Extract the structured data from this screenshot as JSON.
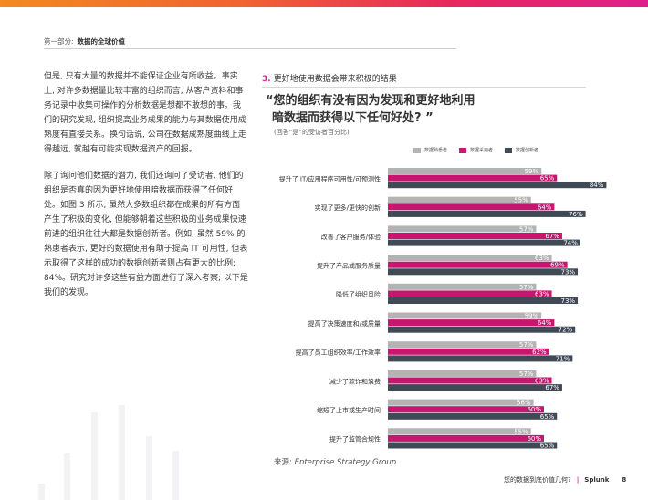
{
  "header": {
    "section_prefix": "第一部分:",
    "section_title": "数据的全球价值"
  },
  "body": {
    "para1": "但是, 只有大量的数据并不能保证企业有所收益。事实上, 对许多数据量比较丰富的组织而言, 从客户资料和事务记录中收集可操作的分析数据是想都不敢想的事。我们的研究发现, 组织提高业务成果的能力与其数据使用成熟度有直接关系。换句话说, 公司在数据成熟度曲线上走得越远, 就越有可能实现数据资产的回报。",
    "para2": "除了询问他们数据的潜力, 我们还询问了受访者, 他们的组织是否真的因为更好地使用暗数据而获得了任何好处。如图 3 所示, 虽然大多数组织都在成果的所有方面产生了积极的变化, 但能够朝着这些积极的业务成果快速前进的组织往往大都是数据创新者。例如, 虽然 59% 的熟患者表示, 更好的数据使用有助于提高 IT 可用性, 但表示取得了这样的成功的数据创新者则占有更大的比例: 84%。研究对许多这些有益方面进行了深入考察; 以下是我们的发现。"
  },
  "figure": {
    "number": "3.",
    "title": "更好地使用数据会带来积极的结果",
    "question_line1": "“您的组织有没有因为发现和更好地利用",
    "question_line2": "暗数据而获得以下任何好处? ”",
    "subtitle": "(回答“是”的受访者百分比)",
    "source_prefix": "来源:",
    "source_name": "Enterprise Strategy Group"
  },
  "chart_data": {
    "type": "bar",
    "orientation": "horizontal",
    "categories": [
      "提升了 IT/应用程序可用性/可预测性",
      "实现了更多/更快的创新",
      "改善了客户服务/体验",
      "提升了产品或服务质量",
      "降低了组织风险",
      "提高了决策速度和/或质量",
      "提高了员工组织效率/工作效率",
      "减少了欺诈和浪费",
      "缩短了上市或生产时间",
      "提升了监管合规性"
    ],
    "series": [
      {
        "name": "数据熟悉者",
        "color": "#b3b3b3",
        "values": [
          59,
          55,
          57,
          63,
          57,
          59,
          57,
          57,
          56,
          55
        ]
      },
      {
        "name": "数据采用者",
        "color": "#c7166f",
        "values": [
          65,
          64,
          67,
          69,
          63,
          64,
          62,
          63,
          60,
          60
        ]
      },
      {
        "name": "数据创新者",
        "color": "#404a56",
        "values": [
          84,
          76,
          74,
          73,
          73,
          72,
          71,
          67,
          65,
          65
        ]
      }
    ],
    "value_suffix": "%",
    "legend_position": "top-right",
    "grid": false
  },
  "footer": {
    "title": "您的数据到底价值几何?",
    "separator": "|",
    "brand": "Splunk",
    "page": "8"
  }
}
